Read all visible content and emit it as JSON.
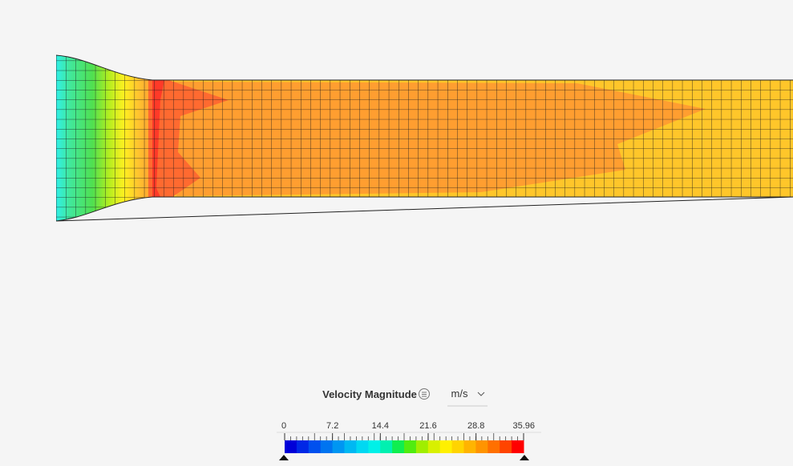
{
  "legend": {
    "title": "Velocity Magnitude",
    "unit": "m/s",
    "ticks": [
      0,
      7.2,
      14.4,
      21.6,
      28.8,
      35.96
    ],
    "colors": [
      "#0000d8",
      "#0028e6",
      "#0050ee",
      "#0074f0",
      "#0096f2",
      "#00b8f2",
      "#00d8f2",
      "#00f0e8",
      "#00f0b0",
      "#10ee50",
      "#50ec10",
      "#a0ee00",
      "#d8f000",
      "#fff000",
      "#ffd400",
      "#ffb400",
      "#ff9400",
      "#ff7000",
      "#ff4400",
      "#ff0000"
    ]
  }
}
